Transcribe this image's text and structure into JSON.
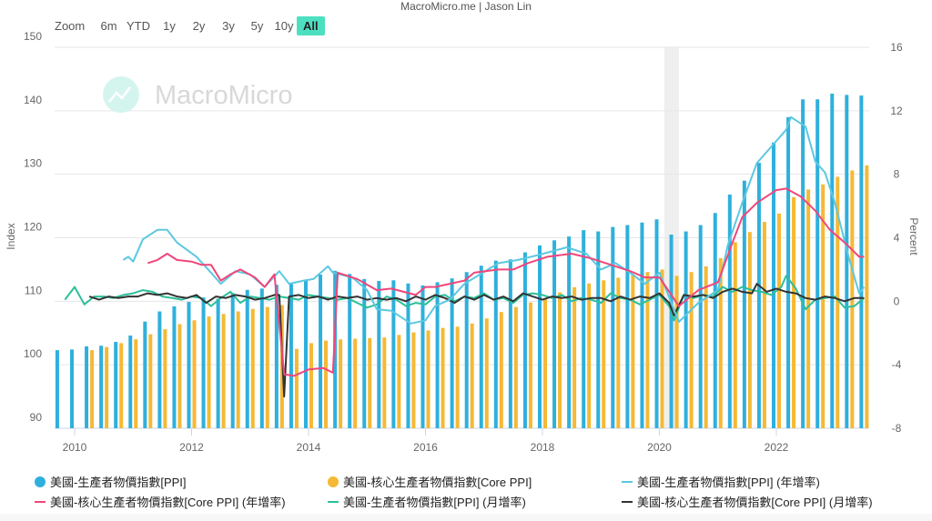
{
  "credit": "MacroMicro.me | Jason Lin",
  "watermark": "MacroMicro",
  "range_selector": {
    "label": "Zoom",
    "buttons": [
      "6m",
      "YTD",
      "1y",
      "2y",
      "3y",
      "5y",
      "10y",
      "All"
    ],
    "active": "All",
    "active_color": "#4de0c0"
  },
  "chart_data": {
    "type": "bar+line",
    "x_ticks": [
      "2010",
      "2012",
      "2014",
      "2016",
      "2018",
      "2020",
      "2022"
    ],
    "left_axis": {
      "label": "Index",
      "range": [
        90,
        150
      ],
      "ticks": [
        "90",
        "100",
        "110",
        "120",
        "130",
        "140",
        "150"
      ]
    },
    "right_axis": {
      "label": "Percent",
      "range": [
        -8,
        16
      ],
      "ticks": [
        "-8",
        "-4",
        "0",
        "4",
        "8",
        "12",
        "16"
      ]
    },
    "grid": true,
    "legend_position": "bottom",
    "shaded_period": [
      "2020-02",
      "2020-05"
    ],
    "series": [
      {
        "name": "美國-生產者物價指數[PPI]",
        "type": "bar",
        "axis": "left",
        "color": "#2fb0dc",
        "x": [
          "2009-10",
          "2010-01",
          "2010-04",
          "2010-07",
          "2010-10",
          "2011-01",
          "2011-04",
          "2011-07",
          "2011-10",
          "2012-01",
          "2012-04",
          "2012-07",
          "2012-10",
          "2013-01",
          "2013-04",
          "2013-07",
          "2013-10",
          "2014-01",
          "2014-04",
          "2014-07",
          "2014-10",
          "2015-01",
          "2015-04",
          "2015-07",
          "2015-10",
          "2016-01",
          "2016-04",
          "2016-07",
          "2016-10",
          "2017-01",
          "2017-04",
          "2017-07",
          "2017-10",
          "2018-01",
          "2018-04",
          "2018-07",
          "2018-10",
          "2019-01",
          "2019-04",
          "2019-07",
          "2019-10",
          "2020-01",
          "2020-04",
          "2020-07",
          "2020-10",
          "2021-01",
          "2021-04",
          "2021-07",
          "2021-10",
          "2022-01",
          "2022-04",
          "2022-07",
          "2022-10",
          "2023-01",
          "2023-04",
          "2023-07"
        ],
        "values": [
          102.3,
          102.4,
          102.9,
          103.0,
          103.6,
          104.6,
          106.8,
          108.4,
          109.2,
          109.9,
          110.6,
          110.4,
          111.3,
          111.8,
          112.0,
          112.6,
          112.7,
          113.4,
          114.2,
          114.8,
          114.3,
          113.5,
          113.2,
          113.3,
          112.8,
          112.5,
          113.0,
          113.6,
          114.6,
          115.6,
          116.4,
          116.6,
          117.7,
          118.8,
          119.6,
          120.2,
          121.2,
          121.0,
          121.7,
          122.0,
          122.4,
          122.9,
          120.5,
          121.0,
          122.0,
          123.9,
          126.8,
          129.0,
          131.8,
          135.0,
          139.0,
          141.8,
          141.8,
          142.7,
          142.5,
          142.4
        ]
      },
      {
        "name": "美國-核心生產者物價指數[Core PPI]",
        "type": "bar",
        "axis": "left",
        "color": "#f5b935",
        "x": [
          "2010-04",
          "2010-07",
          "2010-10",
          "2011-01",
          "2011-04",
          "2011-07",
          "2011-10",
          "2012-01",
          "2012-04",
          "2012-07",
          "2012-10",
          "2013-01",
          "2013-04",
          "2013-07",
          "2013-10",
          "2014-01",
          "2014-04",
          "2014-07",
          "2014-10",
          "2015-01",
          "2015-04",
          "2015-07",
          "2015-10",
          "2016-01",
          "2016-04",
          "2016-07",
          "2016-10",
          "2017-01",
          "2017-04",
          "2017-07",
          "2017-10",
          "2018-01",
          "2018-04",
          "2018-07",
          "2018-10",
          "2019-01",
          "2019-04",
          "2019-07",
          "2019-10",
          "2020-01",
          "2020-04",
          "2020-07",
          "2020-10",
          "2021-01",
          "2021-04",
          "2021-07",
          "2021-10",
          "2022-01",
          "2022-04",
          "2022-07",
          "2022-10",
          "2023-01",
          "2023-04",
          "2023-07"
        ],
        "values": [
          102.3,
          102.8,
          103.4,
          104.0,
          104.8,
          105.6,
          106.4,
          107.0,
          107.6,
          108.0,
          108.4,
          108.8,
          109.1,
          109.4,
          102.5,
          103.4,
          103.8,
          104.0,
          104.1,
          104.2,
          104.3,
          104.7,
          105.1,
          105.4,
          105.8,
          106.0,
          106.5,
          107.3,
          108.3,
          109.1,
          109.8,
          110.5,
          111.4,
          112.2,
          112.8,
          113.3,
          113.7,
          114.2,
          114.6,
          115.0,
          114.0,
          114.6,
          115.5,
          116.8,
          119.3,
          120.9,
          122.5,
          123.8,
          126.4,
          127.6,
          128.4,
          129.6,
          130.6,
          131.4
        ]
      },
      {
        "name": "美國-生產者物價指數[PPI] (年增率)",
        "type": "line",
        "axis": "right",
        "color": "#5bc8e0",
        "x": [
          "2010-11",
          "2010-12",
          "2011-01",
          "2011-03",
          "2011-06",
          "2011-08",
          "2011-10",
          "2012-02",
          "2012-05",
          "2012-07",
          "2012-10",
          "2013-01",
          "2013-04",
          "2013-07",
          "2013-09",
          "2013-12",
          "2014-02",
          "2014-05",
          "2014-06",
          "2014-10",
          "2015-01",
          "2015-03",
          "2015-06",
          "2015-10",
          "2016-01",
          "2016-03",
          "2016-06",
          "2016-09",
          "2017-04",
          "2017-08",
          "2017-12",
          "2018-06",
          "2018-10",
          "2019-01",
          "2019-04",
          "2019-07",
          "2019-10",
          "2020-01",
          "2020-05",
          "2020-09",
          "2021-01",
          "2021-03",
          "2021-06",
          "2021-09",
          "2022-01",
          "2022-03",
          "2022-04",
          "2022-07",
          "2022-09",
          "2022-11",
          "2023-01",
          "2023-04",
          "2023-06",
          "2023-07"
        ],
        "values": [
          2.6,
          2.8,
          2.5,
          3.9,
          4.5,
          4.5,
          3.7,
          2.8,
          1.8,
          1.1,
          1.9,
          1.7,
          0.9,
          1.9,
          1.1,
          1.3,
          1.4,
          2.2,
          1.8,
          1.5,
          0.7,
          -0.5,
          -0.6,
          -1.4,
          -1.2,
          -0.3,
          0.1,
          1.1,
          2.4,
          2.6,
          2.9,
          3.4,
          3.0,
          2.0,
          2.4,
          1.8,
          1.1,
          1.8,
          -1.3,
          -0.1,
          0.7,
          3.5,
          6.2,
          8.7,
          10.1,
          10.8,
          11.6,
          11.0,
          8.8,
          8.1,
          6.2,
          2.6,
          0.5,
          0.9
        ]
      },
      {
        "name": "美國-核心生產者物價指數[Core PPI] (年增率)",
        "type": "line",
        "axis": "right",
        "color": "#f0467a",
        "x": [
          "2011-04",
          "2011-06",
          "2011-08",
          "2011-10",
          "2012-01",
          "2012-03",
          "2012-05",
          "2012-07",
          "2012-09",
          "2012-11",
          "2013-02",
          "2013-04",
          "2013-06",
          "2013-08",
          "2013-10",
          "2014-01",
          "2014-04",
          "2014-06",
          "2014-07",
          "2014-11",
          "2015-03",
          "2015-06",
          "2015-11",
          "2016-01",
          "2016-03",
          "2016-09",
          "2016-11",
          "2017-04",
          "2017-07",
          "2017-10",
          "2018-02",
          "2018-07",
          "2018-11",
          "2019-03",
          "2019-07",
          "2019-10",
          "2020-01",
          "2020-05",
          "2020-09",
          "2021-01",
          "2021-04",
          "2021-06",
          "2021-09",
          "2022-01",
          "2022-03",
          "2022-06",
          "2022-09",
          "2022-12",
          "2023-03",
          "2023-06",
          "2023-07"
        ],
        "values": [
          2.4,
          2.6,
          3.0,
          2.6,
          2.5,
          2.3,
          2.3,
          1.3,
          1.7,
          2.0,
          1.5,
          0.9,
          1.7,
          -4.6,
          -4.7,
          -4.3,
          -4.2,
          -4.5,
          1.8,
          1.4,
          0.7,
          0.8,
          0.4,
          0.9,
          0.9,
          1.3,
          1.8,
          2.0,
          2.0,
          2.4,
          2.8,
          3.0,
          2.7,
          2.3,
          1.9,
          1.5,
          1.5,
          -0.3,
          0.7,
          1.2,
          3.7,
          5.3,
          6.2,
          7.0,
          7.1,
          6.6,
          5.7,
          4.5,
          3.7,
          2.8,
          2.8
        ]
      },
      {
        "name": "美國-生產者物價指數[PPI] (月增率)",
        "type": "line",
        "axis": "right",
        "color": "#2bbf9a",
        "x": [
          "2009-11",
          "2010-01",
          "2010-03",
          "2010-05",
          "2010-07",
          "2010-09",
          "2010-11",
          "2011-01",
          "2011-03",
          "2011-05",
          "2011-07",
          "2011-09",
          "2011-11",
          "2012-01",
          "2012-03",
          "2012-05",
          "2012-07",
          "2012-09",
          "2012-11",
          "2013-01",
          "2013-03",
          "2013-05",
          "2013-07",
          "2013-09",
          "2013-11",
          "2014-01",
          "2014-03",
          "2014-05",
          "2014-07",
          "2014-09",
          "2014-11",
          "2015-01",
          "2015-03",
          "2015-05",
          "2015-07",
          "2015-09",
          "2015-11",
          "2016-01",
          "2016-03",
          "2016-05",
          "2016-07",
          "2016-09",
          "2016-11",
          "2017-01",
          "2017-03",
          "2017-05",
          "2017-07",
          "2017-09",
          "2017-11",
          "2018-01",
          "2018-03",
          "2018-05",
          "2018-07",
          "2018-09",
          "2018-11",
          "2019-01",
          "2019-03",
          "2019-05",
          "2019-07",
          "2019-09",
          "2019-11",
          "2020-01",
          "2020-03",
          "2020-04",
          "2020-06",
          "2020-08",
          "2020-10",
          "2020-12",
          "2021-02",
          "2021-04",
          "2021-06",
          "2021-08",
          "2021-10",
          "2021-12",
          "2022-02",
          "2022-03",
          "2022-05",
          "2022-07",
          "2022-09",
          "2022-11",
          "2023-01",
          "2023-03",
          "2023-05",
          "2023-07"
        ],
        "values": [
          0.1,
          0.9,
          -0.2,
          0.3,
          0.3,
          0.2,
          0.4,
          0.5,
          0.7,
          0.6,
          0.3,
          0.2,
          0.1,
          0.3,
          0.2,
          -0.3,
          0.2,
          0.6,
          -0.1,
          0.3,
          0.2,
          0.1,
          0.3,
          0.2,
          0.1,
          0.4,
          0.3,
          0.2,
          0.1,
          0.2,
          -0.1,
          -0.4,
          -0.2,
          0.3,
          0.1,
          -0.3,
          -0.1,
          -0.2,
          0.3,
          0.4,
          0.0,
          0.3,
          0.2,
          0.5,
          0.1,
          0.2,
          -0.1,
          0.4,
          0.5,
          0.4,
          0.2,
          0.4,
          0.0,
          0.2,
          0.1,
          -0.1,
          0.5,
          0.2,
          0.1,
          -0.2,
          0.1,
          0.4,
          -0.3,
          -1.2,
          0.4,
          0.2,
          0.4,
          0.3,
          0.9,
          0.6,
          0.9,
          0.7,
          0.6,
          0.4,
          0.9,
          1.6,
          0.8,
          -0.5,
          0.1,
          0.2,
          0.3,
          -0.4,
          -0.3,
          0.2
        ]
      },
      {
        "name": "美國-核心生產者物價指數[Core PPI] (月增率)",
        "type": "line",
        "axis": "right",
        "color": "#333333",
        "x": [
          "2010-04",
          "2010-06",
          "2010-08",
          "2010-10",
          "2010-12",
          "2011-02",
          "2011-04",
          "2011-06",
          "2011-08",
          "2011-10",
          "2011-12",
          "2012-02",
          "2012-04",
          "2012-06",
          "2012-08",
          "2012-10",
          "2012-12",
          "2013-02",
          "2013-04",
          "2013-06",
          "2013-07",
          "2013-08",
          "2013-09",
          "2013-11",
          "2014-01",
          "2014-03",
          "2014-05",
          "2014-07",
          "2014-09",
          "2014-11",
          "2015-01",
          "2015-03",
          "2015-05",
          "2015-07",
          "2015-09",
          "2015-11",
          "2016-01",
          "2016-03",
          "2016-05",
          "2016-07",
          "2016-09",
          "2016-11",
          "2017-01",
          "2017-03",
          "2017-05",
          "2017-07",
          "2017-09",
          "2017-11",
          "2018-01",
          "2018-03",
          "2018-05",
          "2018-07",
          "2018-09",
          "2018-11",
          "2019-01",
          "2019-03",
          "2019-05",
          "2019-07",
          "2019-09",
          "2019-11",
          "2020-01",
          "2020-03",
          "2020-04",
          "2020-06",
          "2020-08",
          "2020-10",
          "2020-12",
          "2021-02",
          "2021-04",
          "2021-06",
          "2021-08",
          "2021-09",
          "2021-11",
          "2022-01",
          "2022-03",
          "2022-05",
          "2022-07",
          "2022-09",
          "2022-11",
          "2023-01",
          "2023-03",
          "2023-05",
          "2023-07"
        ],
        "values": [
          0.3,
          0.1,
          0.3,
          0.2,
          0.3,
          0.3,
          0.5,
          0.4,
          0.5,
          0.3,
          0.2,
          0.4,
          -0.1,
          0.3,
          0.2,
          0.4,
          0.3,
          0.1,
          0.2,
          0.4,
          0.4,
          -6.0,
          0.3,
          0.4,
          0.2,
          0.3,
          0.1,
          0.3,
          0.2,
          0.3,
          0.1,
          0.2,
          0.1,
          0.2,
          0.0,
          0.3,
          0.1,
          0.4,
          0.2,
          -0.1,
          0.3,
          0.1,
          0.4,
          0.1,
          0.3,
          0.0,
          0.5,
          0.3,
          0.1,
          0.3,
          0.2,
          0.3,
          0.1,
          0.2,
          0.2,
          0.0,
          0.3,
          0.1,
          0.3,
          0.2,
          0.5,
          -0.1,
          -0.9,
          0.4,
          0.3,
          0.4,
          0.2,
          0.6,
          0.8,
          0.6,
          0.5,
          1.1,
          0.6,
          0.8,
          0.6,
          0.5,
          0.2,
          0.1,
          0.3,
          0.2,
          0.0,
          0.2,
          0.2
        ]
      }
    ]
  }
}
